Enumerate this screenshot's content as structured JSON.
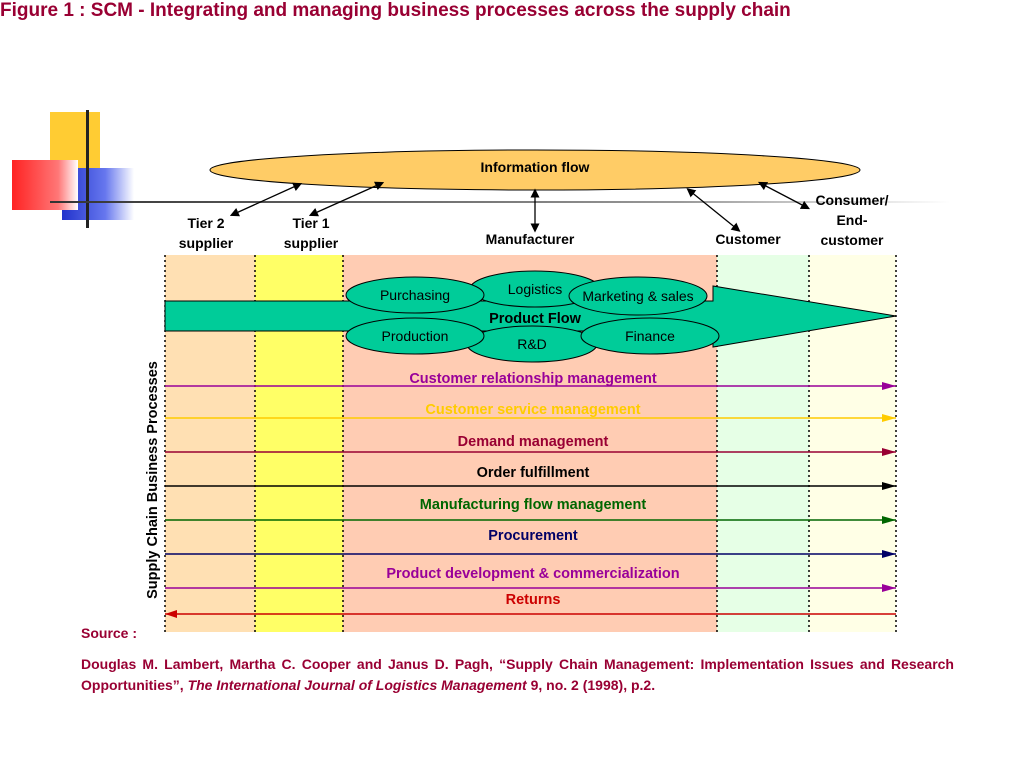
{
  "title": "Figure 1 : SCM - Integrating and managing business processes across the supply chain",
  "information_flow": "Information flow",
  "entities": {
    "tier2": [
      "Tier 2",
      "supplier"
    ],
    "tier1": [
      "Tier 1",
      "supplier"
    ],
    "manufacturer": "Manufacturer",
    "customer": "Customer",
    "consumer": [
      "Consumer/",
      "End-",
      "customer"
    ]
  },
  "functions": {
    "purchasing": "Purchasing",
    "logistics": "Logistics",
    "marketing": "Marketing & sales",
    "production": "Production",
    "rnd": "R&D",
    "finance": "Finance"
  },
  "product_flow": "Product Flow",
  "vertical_label": "Supply Chain Business Processes",
  "processes": [
    {
      "label": "Customer relationship management",
      "color": "#990099",
      "arrow": "right"
    },
    {
      "label": "Customer service management",
      "color": "#ffcc00",
      "arrow": "right"
    },
    {
      "label": "Demand management",
      "color": "#990033",
      "arrow": "right"
    },
    {
      "label": "Order fulfillment",
      "color": "#000000",
      "arrow": "right"
    },
    {
      "label": "Manufacturing flow management",
      "color": "#006600",
      "arrow": "right"
    },
    {
      "label": "Procurement",
      "color": "#000066",
      "arrow": "right"
    },
    {
      "label": "Product development & commercialization",
      "color": "#990099",
      "arrow": "right"
    },
    {
      "label": "Returns",
      "color": "#cc0000",
      "arrow": "left"
    }
  ],
  "source_label": "Source :",
  "citation": {
    "part1": "Douglas M. Lambert, Martha C. Cooper and Janus D. Pagh, “Supply Chain Management:  Implementation Issues and Research Opportunities”, ",
    "journal": "The International Journal of Logistics Management",
    "part2": " 9, no. 2 (1998), p.2."
  },
  "colors": {
    "title": "#990033",
    "info_oval": "#ffcc66",
    "tier2_band": "#ffe0b3",
    "tier1_band": "#ffff66",
    "manufacturer_band": "#ffccb3",
    "customer_band": "#e6ffe6",
    "consumer_band": "#ffffe6",
    "product_flow": "#00cc99"
  }
}
